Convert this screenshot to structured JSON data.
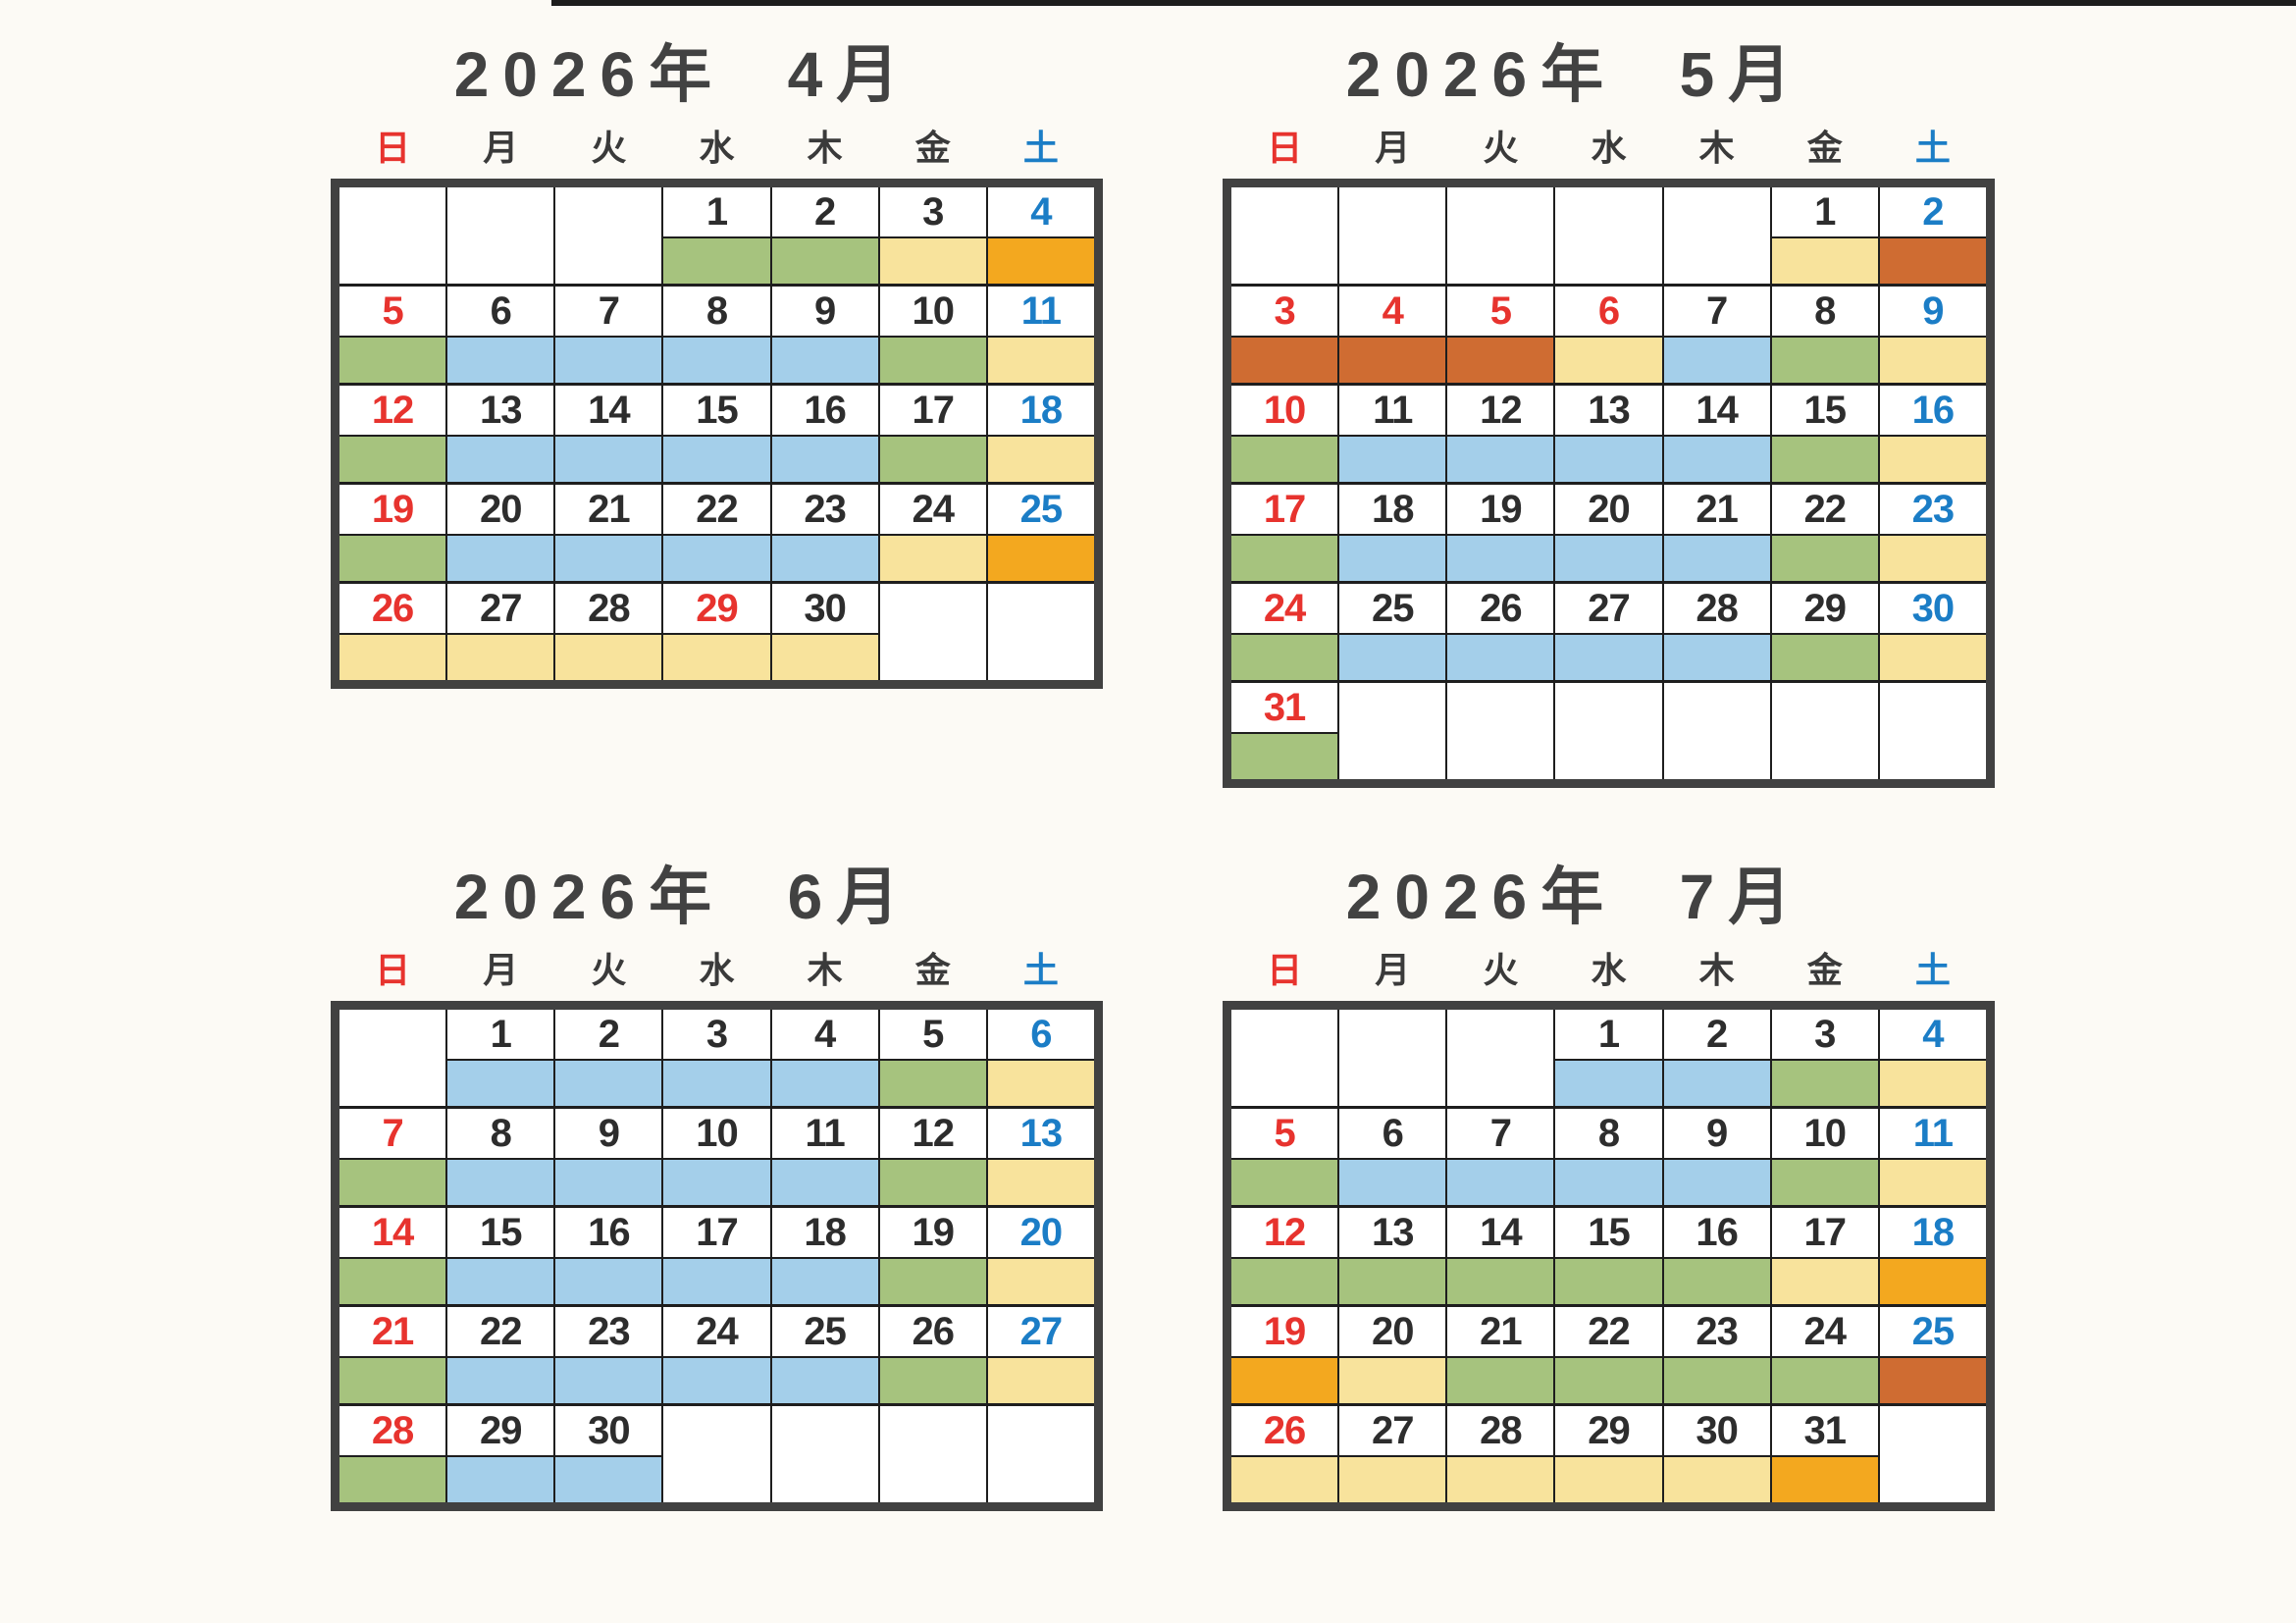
{
  "page_type": "printed shift calendar scan",
  "weekday_headers": [
    "日",
    "月",
    "火",
    "水",
    "木",
    "金",
    "土"
  ],
  "colors": {
    "band_green": "#a6c37e",
    "band_blue": "#a4cfea",
    "band_cream": "#f8e39c",
    "band_orange": "#f3a81f",
    "band_terracotta": "#cf6c32",
    "sunday_red": "#e7332e",
    "saturday_blue": "#1b7dc6",
    "weekday_text": "#2d2d2d",
    "grid_line": "#1e1e1e",
    "frame": "#414141",
    "paper": "#fcfaf5"
  },
  "calendars": [
    {
      "title": "2026年  4月",
      "weeks": [
        [
          null,
          null,
          null,
          {
            "d": "1",
            "c": "wd",
            "b": "green"
          },
          {
            "d": "2",
            "c": "wd",
            "b": "green"
          },
          {
            "d": "3",
            "c": "wd",
            "b": "cream"
          },
          {
            "d": "4",
            "c": "sat",
            "b": "orange"
          }
        ],
        [
          {
            "d": "5",
            "c": "sun",
            "b": "green"
          },
          {
            "d": "6",
            "c": "wd",
            "b": "blue"
          },
          {
            "d": "7",
            "c": "wd",
            "b": "blue"
          },
          {
            "d": "8",
            "c": "wd",
            "b": "blue"
          },
          {
            "d": "9",
            "c": "wd",
            "b": "blue"
          },
          {
            "d": "10",
            "c": "wd",
            "b": "green"
          },
          {
            "d": "11",
            "c": "sat",
            "b": "cream"
          }
        ],
        [
          {
            "d": "12",
            "c": "sun",
            "b": "green"
          },
          {
            "d": "13",
            "c": "wd",
            "b": "blue"
          },
          {
            "d": "14",
            "c": "wd",
            "b": "blue"
          },
          {
            "d": "15",
            "c": "wd",
            "b": "blue"
          },
          {
            "d": "16",
            "c": "wd",
            "b": "blue"
          },
          {
            "d": "17",
            "c": "wd",
            "b": "green"
          },
          {
            "d": "18",
            "c": "sat",
            "b": "cream"
          }
        ],
        [
          {
            "d": "19",
            "c": "sun",
            "b": "green"
          },
          {
            "d": "20",
            "c": "wd",
            "b": "blue"
          },
          {
            "d": "21",
            "c": "wd",
            "b": "blue"
          },
          {
            "d": "22",
            "c": "wd",
            "b": "blue"
          },
          {
            "d": "23",
            "c": "wd",
            "b": "blue"
          },
          {
            "d": "24",
            "c": "wd",
            "b": "cream"
          },
          {
            "d": "25",
            "c": "sat",
            "b": "orange"
          }
        ],
        [
          {
            "d": "26",
            "c": "sun",
            "b": "cream"
          },
          {
            "d": "27",
            "c": "wd",
            "b": "cream"
          },
          {
            "d": "28",
            "c": "wd",
            "b": "cream"
          },
          {
            "d": "29",
            "c": "sun",
            "b": "cream"
          },
          {
            "d": "30",
            "c": "wd",
            "b": "cream"
          },
          null,
          null
        ]
      ]
    },
    {
      "title": "2026年  5月",
      "weeks": [
        [
          null,
          null,
          null,
          null,
          null,
          {
            "d": "1",
            "c": "wd",
            "b": "cream"
          },
          {
            "d": "2",
            "c": "sat",
            "b": "terracotta"
          }
        ],
        [
          {
            "d": "3",
            "c": "sun",
            "b": "terracotta"
          },
          {
            "d": "4",
            "c": "sun",
            "b": "terracotta"
          },
          {
            "d": "5",
            "c": "sun",
            "b": "terracotta"
          },
          {
            "d": "6",
            "c": "sun",
            "b": "cream"
          },
          {
            "d": "7",
            "c": "wd",
            "b": "blue"
          },
          {
            "d": "8",
            "c": "wd",
            "b": "green"
          },
          {
            "d": "9",
            "c": "sat",
            "b": "cream"
          }
        ],
        [
          {
            "d": "10",
            "c": "sun",
            "b": "green"
          },
          {
            "d": "11",
            "c": "wd",
            "b": "blue"
          },
          {
            "d": "12",
            "c": "wd",
            "b": "blue"
          },
          {
            "d": "13",
            "c": "wd",
            "b": "blue"
          },
          {
            "d": "14",
            "c": "wd",
            "b": "blue"
          },
          {
            "d": "15",
            "c": "wd",
            "b": "green"
          },
          {
            "d": "16",
            "c": "sat",
            "b": "cream"
          }
        ],
        [
          {
            "d": "17",
            "c": "sun",
            "b": "green"
          },
          {
            "d": "18",
            "c": "wd",
            "b": "blue"
          },
          {
            "d": "19",
            "c": "wd",
            "b": "blue"
          },
          {
            "d": "20",
            "c": "wd",
            "b": "blue"
          },
          {
            "d": "21",
            "c": "wd",
            "b": "blue"
          },
          {
            "d": "22",
            "c": "wd",
            "b": "green"
          },
          {
            "d": "23",
            "c": "sat",
            "b": "cream"
          }
        ],
        [
          {
            "d": "24",
            "c": "sun",
            "b": "green"
          },
          {
            "d": "25",
            "c": "wd",
            "b": "blue"
          },
          {
            "d": "26",
            "c": "wd",
            "b": "blue"
          },
          {
            "d": "27",
            "c": "wd",
            "b": "blue"
          },
          {
            "d": "28",
            "c": "wd",
            "b": "blue"
          },
          {
            "d": "29",
            "c": "wd",
            "b": "green"
          },
          {
            "d": "30",
            "c": "sat",
            "b": "cream"
          }
        ],
        [
          {
            "d": "31",
            "c": "sun",
            "b": "green"
          },
          null,
          null,
          null,
          null,
          null,
          null
        ]
      ]
    },
    {
      "title": "2026年  6月",
      "weeks": [
        [
          null,
          {
            "d": "1",
            "c": "wd",
            "b": "blue"
          },
          {
            "d": "2",
            "c": "wd",
            "b": "blue"
          },
          {
            "d": "3",
            "c": "wd",
            "b": "blue"
          },
          {
            "d": "4",
            "c": "wd",
            "b": "blue"
          },
          {
            "d": "5",
            "c": "wd",
            "b": "green"
          },
          {
            "d": "6",
            "c": "sat",
            "b": "cream"
          }
        ],
        [
          {
            "d": "7",
            "c": "sun",
            "b": "green"
          },
          {
            "d": "8",
            "c": "wd",
            "b": "blue"
          },
          {
            "d": "9",
            "c": "wd",
            "b": "blue"
          },
          {
            "d": "10",
            "c": "wd",
            "b": "blue"
          },
          {
            "d": "11",
            "c": "wd",
            "b": "blue"
          },
          {
            "d": "12",
            "c": "wd",
            "b": "green"
          },
          {
            "d": "13",
            "c": "sat",
            "b": "cream"
          }
        ],
        [
          {
            "d": "14",
            "c": "sun",
            "b": "green"
          },
          {
            "d": "15",
            "c": "wd",
            "b": "blue"
          },
          {
            "d": "16",
            "c": "wd",
            "b": "blue"
          },
          {
            "d": "17",
            "c": "wd",
            "b": "blue"
          },
          {
            "d": "18",
            "c": "wd",
            "b": "blue"
          },
          {
            "d": "19",
            "c": "wd",
            "b": "green"
          },
          {
            "d": "20",
            "c": "sat",
            "b": "cream"
          }
        ],
        [
          {
            "d": "21",
            "c": "sun",
            "b": "green"
          },
          {
            "d": "22",
            "c": "wd",
            "b": "blue"
          },
          {
            "d": "23",
            "c": "wd",
            "b": "blue"
          },
          {
            "d": "24",
            "c": "wd",
            "b": "blue"
          },
          {
            "d": "25",
            "c": "wd",
            "b": "blue"
          },
          {
            "d": "26",
            "c": "wd",
            "b": "green"
          },
          {
            "d": "27",
            "c": "sat",
            "b": "cream"
          }
        ],
        [
          {
            "d": "28",
            "c": "sun",
            "b": "green"
          },
          {
            "d": "29",
            "c": "wd",
            "b": "blue"
          },
          {
            "d": "30",
            "c": "wd",
            "b": "blue"
          },
          null,
          null,
          null,
          null
        ]
      ]
    },
    {
      "title": "2026年  7月",
      "weeks": [
        [
          null,
          null,
          null,
          {
            "d": "1",
            "c": "wd",
            "b": "blue"
          },
          {
            "d": "2",
            "c": "wd",
            "b": "blue"
          },
          {
            "d": "3",
            "c": "wd",
            "b": "green"
          },
          {
            "d": "4",
            "c": "sat",
            "b": "cream"
          }
        ],
        [
          {
            "d": "5",
            "c": "sun",
            "b": "green"
          },
          {
            "d": "6",
            "c": "wd",
            "b": "blue"
          },
          {
            "d": "7",
            "c": "wd",
            "b": "blue"
          },
          {
            "d": "8",
            "c": "wd",
            "b": "blue"
          },
          {
            "d": "9",
            "c": "wd",
            "b": "blue"
          },
          {
            "d": "10",
            "c": "wd",
            "b": "green"
          },
          {
            "d": "11",
            "c": "sat",
            "b": "cream"
          }
        ],
        [
          {
            "d": "12",
            "c": "sun",
            "b": "green"
          },
          {
            "d": "13",
            "c": "wd",
            "b": "green"
          },
          {
            "d": "14",
            "c": "wd",
            "b": "green"
          },
          {
            "d": "15",
            "c": "wd",
            "b": "green"
          },
          {
            "d": "16",
            "c": "wd",
            "b": "green"
          },
          {
            "d": "17",
            "c": "wd",
            "b": "cream"
          },
          {
            "d": "18",
            "c": "sat",
            "b": "orange"
          }
        ],
        [
          {
            "d": "19",
            "c": "sun",
            "b": "orange"
          },
          {
            "d": "20",
            "c": "wd",
            "b": "cream"
          },
          {
            "d": "21",
            "c": "wd",
            "b": "green"
          },
          {
            "d": "22",
            "c": "wd",
            "b": "green"
          },
          {
            "d": "23",
            "c": "wd",
            "b": "green"
          },
          {
            "d": "24",
            "c": "wd",
            "b": "green"
          },
          {
            "d": "25",
            "c": "sat",
            "b": "terracotta"
          }
        ],
        [
          {
            "d": "26",
            "c": "sun",
            "b": "cream"
          },
          {
            "d": "27",
            "c": "wd",
            "b": "cream"
          },
          {
            "d": "28",
            "c": "wd",
            "b": "cream"
          },
          {
            "d": "29",
            "c": "wd",
            "b": "cream"
          },
          {
            "d": "30",
            "c": "wd",
            "b": "cream"
          },
          {
            "d": "31",
            "c": "wd",
            "b": "orange"
          },
          null
        ]
      ]
    }
  ]
}
